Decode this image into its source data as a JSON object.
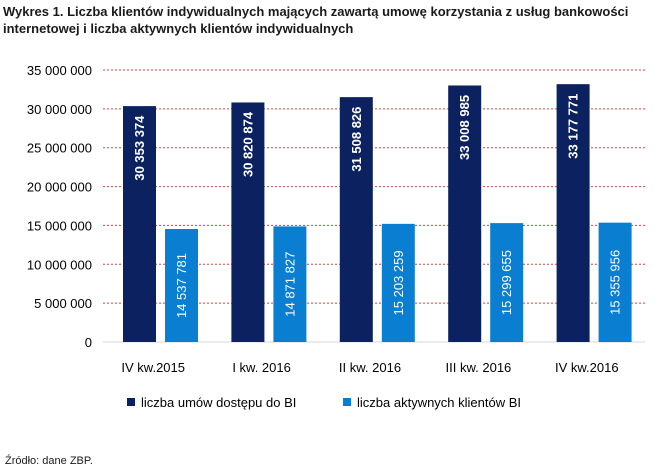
{
  "title": "Wykres 1. Liczba klientów indywidualnych mających zawartą umowę korzystania z usług bankowości internetowej i liczba aktywnych klientów indywidualnych",
  "source": "Źródło: dane ZBP.",
  "colors": {
    "series1": "#0b2160",
    "series2": "#0a7fd1",
    "gridline": "#e0423a"
  },
  "chart_data": {
    "type": "bar",
    "title": "Wykres 1. Liczba klientów indywidualnych mających zawartą umowę korzystania z usług bankowości internetowej i liczba aktywnych klientów indywidualnych",
    "categories": [
      "IV kw.2015",
      "I kw. 2016",
      "II kw. 2016",
      "III kw. 2016",
      "IV kw.2016"
    ],
    "series": [
      {
        "name": "liczba umów dostępu do BI",
        "values": [
          30353374,
          30820874,
          31508826,
          33008985,
          33177771
        ],
        "labels": [
          "30 353 374",
          "30 820 874",
          "31 508 826",
          "33 008 985",
          "33 177 771"
        ]
      },
      {
        "name": "liczba aktywnych klientów BI",
        "values": [
          14537781,
          14871827,
          15203259,
          15299655,
          15355956
        ],
        "labels": [
          "14 537 781",
          "14 871 827",
          "15 203 259",
          "15 299 655",
          "15 355 956"
        ]
      }
    ],
    "ylim": [
      0,
      35000000
    ],
    "yticks": [
      0,
      5000000,
      10000000,
      15000000,
      20000000,
      25000000,
      30000000,
      35000000
    ],
    "ytick_labels": [
      "0",
      "5 000 000",
      "10 000 000",
      "15 000 000",
      "20 000 000",
      "25 000 000",
      "30 000 000",
      "35 000 000"
    ],
    "grid": true,
    "legend": "bottom"
  }
}
